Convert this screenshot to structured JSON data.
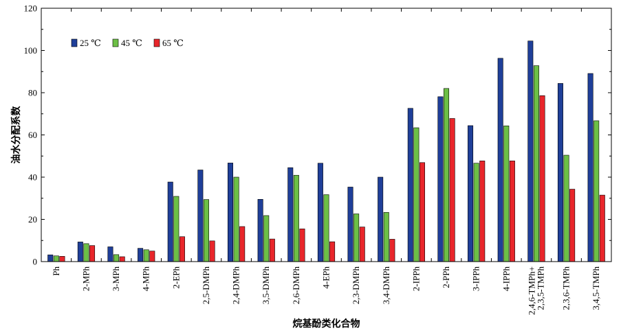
{
  "chart_data": {
    "type": "bar",
    "title": "",
    "xlabel": "烷基酚类化合物",
    "ylabel": "油水分配系数",
    "ylim": [
      0,
      120
    ],
    "yticks": [
      0,
      20,
      40,
      60,
      80,
      100,
      120
    ],
    "grid": false,
    "legend_position": "top-left",
    "categories": [
      "Ph",
      "2-MPh",
      "3-MPh",
      "4-MPh",
      "2-EPh",
      "2,5-DMPh",
      "2,4-DMPh",
      "3,5-DMPh",
      "2,6-DMPh",
      "4-EPh",
      "2,3-DMPh",
      "3,4-DMPh",
      "2-IPPh",
      "2-PPh",
      "3-IPPh",
      "4-IPPh",
      "2,4,6-TMPh+\n2,3,5-TMPh",
      "2,3,6-TMPh",
      "3,4,5-TMPh"
    ],
    "series": [
      {
        "name": "25 ℃",
        "color": "#1f3f99",
        "values": [
          3.2,
          9.3,
          7.0,
          6.3,
          37.7,
          43.4,
          46.7,
          29.5,
          44.5,
          46.6,
          35.3,
          40.0,
          72.6,
          78.1,
          64.4,
          96.3,
          104.5,
          84.4,
          89.1
        ]
      },
      {
        "name": "45 ℃",
        "color": "#6cbf46",
        "values": [
          2.7,
          8.5,
          3.3,
          5.6,
          30.9,
          29.4,
          40.0,
          21.8,
          40.9,
          31.7,
          22.6,
          23.3,
          63.4,
          82.0,
          46.6,
          64.3,
          92.8,
          50.4,
          66.7
        ]
      },
      {
        "name": "65 ℃",
        "color": "#e8262b",
        "values": [
          2.5,
          7.6,
          2.3,
          5.0,
          11.8,
          9.8,
          16.6,
          10.7,
          15.5,
          9.4,
          16.4,
          10.6,
          46.9,
          67.8,
          47.7,
          47.7,
          78.6,
          34.3,
          31.5
        ]
      }
    ]
  }
}
